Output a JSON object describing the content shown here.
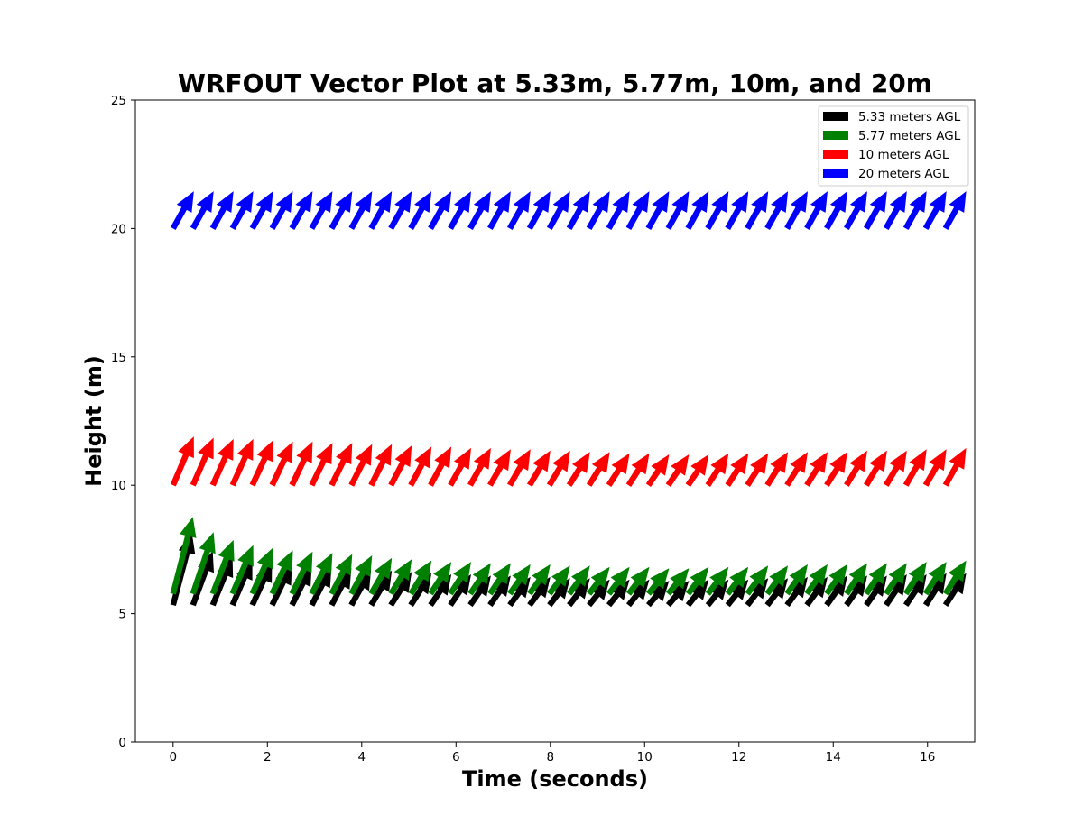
{
  "chart_data": {
    "type": "quiver",
    "title": "WRFOUT Vector Plot at 5.33m, 5.77m, 10m, and 20m",
    "xlabel": "Time (seconds)",
    "ylabel": "Height (m)",
    "xlim": [
      -0.8,
      17
    ],
    "ylim": [
      0,
      25
    ],
    "xticks": [
      0,
      2,
      4,
      6,
      8,
      10,
      12,
      14,
      16
    ],
    "yticks": [
      0,
      5,
      10,
      15,
      20,
      25
    ],
    "legend_position": "top-right",
    "grid": false,
    "x": [
      0,
      0.42,
      0.84,
      1.26,
      1.68,
      2.1,
      2.52,
      2.94,
      3.36,
      3.78,
      4.2,
      4.62,
      5.04,
      5.46,
      5.88,
      6.3,
      6.72,
      7.14,
      7.56,
      7.98,
      8.4,
      8.82,
      9.24,
      9.66,
      10.08,
      10.5,
      10.92,
      11.34,
      11.76,
      12.18,
      12.6,
      13.02,
      13.44,
      13.86,
      14.28,
      14.7,
      15.12,
      15.54,
      15.96,
      16.38
    ],
    "series": [
      {
        "name": "5.33 meters AGL",
        "color": "#000000",
        "height": 5.33,
        "u": [
          0.4,
          0.42,
          0.42,
          0.42,
          0.42,
          0.42,
          0.42,
          0.42,
          0.42,
          0.42,
          0.44,
          0.44,
          0.44,
          0.44,
          0.44,
          0.44,
          0.44,
          0.44,
          0.44,
          0.44,
          0.44,
          0.44,
          0.44,
          0.44,
          0.44,
          0.44,
          0.44,
          0.44,
          0.44,
          0.44,
          0.44,
          0.44,
          0.44,
          0.44,
          0.44,
          0.44,
          0.44,
          0.44,
          0.44,
          0.44
        ],
        "v": [
          2.8,
          2.1,
          1.9,
          1.8,
          1.7,
          1.6,
          1.55,
          1.5,
          1.45,
          1.4,
          1.35,
          1.3,
          1.25,
          1.2,
          1.2,
          1.15,
          1.15,
          1.1,
          1.1,
          1.05,
          1.05,
          1.0,
          1.0,
          1.0,
          0.95,
          0.95,
          1.0,
          1.0,
          1.0,
          1.05,
          1.05,
          1.1,
          1.1,
          1.15,
          1.15,
          1.15,
          1.2,
          1.2,
          1.25,
          1.25
        ]
      },
      {
        "name": "5.77 meters AGL",
        "color": "#008000",
        "height": 5.77,
        "u": [
          0.42,
          0.44,
          0.44,
          0.44,
          0.44,
          0.44,
          0.44,
          0.44,
          0.44,
          0.44,
          0.44,
          0.44,
          0.44,
          0.44,
          0.44,
          0.44,
          0.44,
          0.44,
          0.44,
          0.44,
          0.44,
          0.44,
          0.44,
          0.44,
          0.44,
          0.44,
          0.44,
          0.44,
          0.44,
          0.44,
          0.44,
          0.44,
          0.44,
          0.44,
          0.44,
          0.44,
          0.44,
          0.44,
          0.44,
          0.44
        ],
        "v": [
          3.0,
          2.4,
          2.1,
          1.9,
          1.8,
          1.7,
          1.65,
          1.6,
          1.55,
          1.5,
          1.4,
          1.35,
          1.3,
          1.25,
          1.25,
          1.2,
          1.2,
          1.15,
          1.15,
          1.1,
          1.1,
          1.05,
          1.05,
          1.05,
          1.0,
          1.0,
          1.05,
          1.05,
          1.05,
          1.1,
          1.1,
          1.15,
          1.15,
          1.15,
          1.2,
          1.2,
          1.2,
          1.25,
          1.25,
          1.3
        ]
      },
      {
        "name": "10 meters AGL",
        "color": "#ff0000",
        "height": 10,
        "u": [
          0.44,
          0.44,
          0.44,
          0.44,
          0.44,
          0.44,
          0.44,
          0.44,
          0.44,
          0.44,
          0.44,
          0.44,
          0.44,
          0.44,
          0.44,
          0.44,
          0.44,
          0.44,
          0.44,
          0.44,
          0.44,
          0.44,
          0.44,
          0.44,
          0.44,
          0.44,
          0.44,
          0.44,
          0.44,
          0.44,
          0.44,
          0.44,
          0.44,
          0.44,
          0.44,
          0.44,
          0.44,
          0.44,
          0.44,
          0.44
        ],
        "v": [
          1.9,
          1.85,
          1.8,
          1.8,
          1.75,
          1.7,
          1.7,
          1.65,
          1.65,
          1.6,
          1.6,
          1.55,
          1.5,
          1.5,
          1.45,
          1.45,
          1.4,
          1.4,
          1.35,
          1.35,
          1.3,
          1.3,
          1.25,
          1.25,
          1.2,
          1.2,
          1.2,
          1.25,
          1.25,
          1.25,
          1.3,
          1.3,
          1.3,
          1.3,
          1.35,
          1.35,
          1.35,
          1.4,
          1.4,
          1.45
        ]
      },
      {
        "name": "20 meters AGL",
        "color": "#0000ff",
        "height": 20,
        "u": [
          0.44,
          0.44,
          0.44,
          0.44,
          0.44,
          0.44,
          0.44,
          0.44,
          0.44,
          0.44,
          0.44,
          0.44,
          0.44,
          0.44,
          0.44,
          0.44,
          0.44,
          0.44,
          0.44,
          0.44,
          0.44,
          0.44,
          0.44,
          0.44,
          0.44,
          0.44,
          0.44,
          0.44,
          0.44,
          0.44,
          0.44,
          0.44,
          0.44,
          0.44,
          0.44,
          0.44,
          0.44,
          0.44,
          0.44,
          0.44
        ],
        "v": [
          1.45,
          1.45,
          1.45,
          1.45,
          1.45,
          1.45,
          1.45,
          1.45,
          1.45,
          1.45,
          1.45,
          1.45,
          1.45,
          1.45,
          1.45,
          1.45,
          1.45,
          1.45,
          1.45,
          1.45,
          1.45,
          1.45,
          1.45,
          1.45,
          1.45,
          1.45,
          1.45,
          1.45,
          1.45,
          1.45,
          1.45,
          1.45,
          1.45,
          1.45,
          1.45,
          1.45,
          1.45,
          1.45,
          1.45,
          1.45
        ]
      }
    ]
  }
}
